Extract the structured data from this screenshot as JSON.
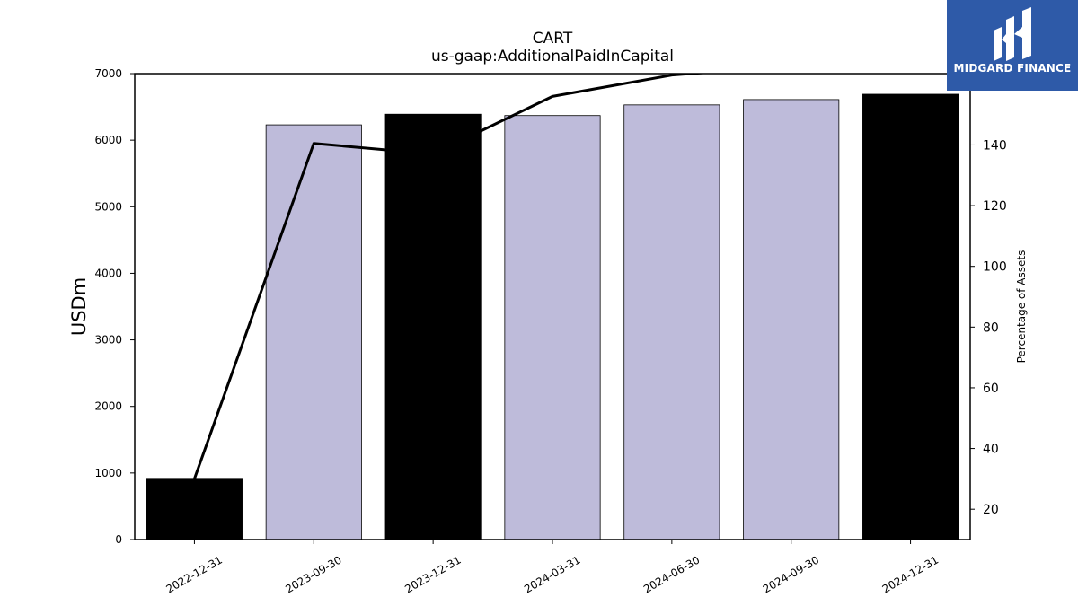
{
  "chart_data": {
    "type": "bar",
    "title": "CART",
    "subtitle": "us-gaap:AdditionalPaidInCapital",
    "categories": [
      "2022-12-31",
      "2023-09-30",
      "2023-12-31",
      "2024-03-31",
      "2024-06-30",
      "2024-09-30",
      "2024-12-31"
    ],
    "ylabel": "USDm",
    "ylim": [
      0,
      7000
    ],
    "yticks": [
      0,
      1000,
      2000,
      3000,
      4000,
      5000,
      6000,
      7000
    ],
    "y2label": "Percentage of Assets",
    "y2lim": [
      10,
      163.5
    ],
    "y2ticks": [
      20,
      40,
      60,
      80,
      100,
      120,
      140
    ],
    "grid": false,
    "series": [
      {
        "type": "bar",
        "values": [
          920,
          6230,
          6390,
          6370,
          6530,
          6610,
          6690
        ],
        "colors": [
          "#000000",
          "#bebbda",
          "#000000",
          "#bebbda",
          "#bebbda",
          "#bebbda",
          "#000000"
        ]
      },
      {
        "type": "line",
        "axis": "right",
        "color": "#000000",
        "values": [
          30,
          140.5,
          137,
          156,
          163,
          166,
          166
        ]
      }
    ]
  },
  "logo": {
    "text": "MIDGARD FINANCE",
    "bg_color": "#2e5aa8"
  }
}
